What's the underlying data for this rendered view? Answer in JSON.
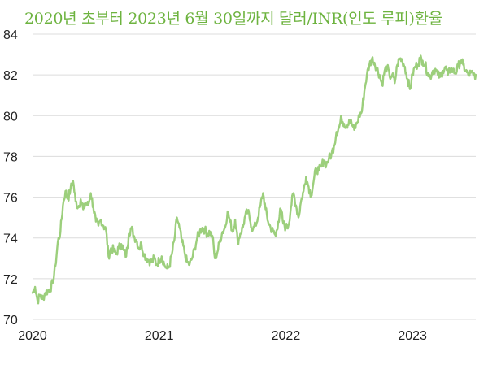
{
  "chart_data": {
    "type": "line",
    "title": "2020년 초부터 2023년 6월 30일까지 달러/INR(인도 루피)환율",
    "xlabel": "",
    "ylabel": "",
    "xlim": [
      2020.0,
      2023.5
    ],
    "ylim": [
      70,
      84
    ],
    "grid": "horizontal",
    "y_ticks": [
      "70",
      "72",
      "74",
      "76",
      "78",
      "80",
      "82",
      "84"
    ],
    "x_ticks": [
      "2020",
      "2021",
      "2022",
      "2023"
    ],
    "series_color": "#9ccf7c",
    "title_color": "#6db33f",
    "series": [
      {
        "x": [
          2020.0,
          2020.02,
          2020.04,
          2020.06,
          2020.08,
          2020.1,
          2020.12,
          2020.14,
          2020.16,
          2020.18,
          2020.2,
          2020.22,
          2020.24,
          2020.26,
          2020.28,
          2020.3,
          2020.32,
          2020.34,
          2020.36,
          2020.38,
          2020.4,
          2020.42,
          2020.44,
          2020.46,
          2020.48,
          2020.5,
          2020.52,
          2020.54,
          2020.56,
          2020.58,
          2020.6,
          2020.62,
          2020.64,
          2020.66,
          2020.68,
          2020.7,
          2020.72,
          2020.74,
          2020.76,
          2020.78,
          2020.8,
          2020.82,
          2020.84,
          2020.86,
          2020.88,
          2020.9,
          2020.92,
          2020.94,
          2020.96,
          2020.98,
          2021.0,
          2021.02,
          2021.04,
          2021.06,
          2021.08,
          2021.1,
          2021.12,
          2021.14,
          2021.16,
          2021.18,
          2021.2,
          2021.22,
          2021.24,
          2021.26,
          2021.28,
          2021.3,
          2021.32,
          2021.34,
          2021.36,
          2021.38,
          2021.4,
          2021.42,
          2021.44,
          2021.46,
          2021.48,
          2021.5,
          2021.52,
          2021.54,
          2021.56,
          2021.58,
          2021.6,
          2021.62,
          2021.64,
          2021.66,
          2021.68,
          2021.7,
          2021.72,
          2021.74,
          2021.76,
          2021.78,
          2021.8,
          2021.82,
          2021.84,
          2021.86,
          2021.88,
          2021.9,
          2021.92,
          2021.94,
          2021.96,
          2021.98,
          2022.0,
          2022.02,
          2022.04,
          2022.06,
          2022.08,
          2022.1,
          2022.12,
          2022.14,
          2022.16,
          2022.18,
          2022.2,
          2022.22,
          2022.24,
          2022.26,
          2022.28,
          2022.3,
          2022.32,
          2022.34,
          2022.36,
          2022.38,
          2022.4,
          2022.42,
          2022.44,
          2022.46,
          2022.48,
          2022.5,
          2022.52,
          2022.54,
          2022.56,
          2022.58,
          2022.6,
          2022.62,
          2022.64,
          2022.66,
          2022.68,
          2022.7,
          2022.72,
          2022.74,
          2022.76,
          2022.78,
          2022.8,
          2022.82,
          2022.84,
          2022.86,
          2022.88,
          2022.9,
          2022.92,
          2022.94,
          2022.96,
          2022.98,
          2023.0,
          2023.02,
          2023.04,
          2023.06,
          2023.08,
          2023.1,
          2023.12,
          2023.14,
          2023.16,
          2023.18,
          2023.2,
          2023.22,
          2023.24,
          2023.26,
          2023.28,
          2023.3,
          2023.32,
          2023.34,
          2023.36,
          2023.38,
          2023.4,
          2023.42,
          2023.44,
          2023.46,
          2023.48,
          2023.5
        ],
        "values": [
          71.3,
          71.6,
          70.9,
          71.2,
          71.0,
          71.3,
          71.4,
          71.5,
          71.8,
          72.6,
          73.8,
          74.3,
          75.6,
          76.3,
          75.9,
          76.4,
          76.8,
          75.8,
          75.5,
          75.9,
          75.4,
          75.7,
          75.6,
          76.2,
          75.5,
          74.8,
          74.6,
          74.9,
          74.6,
          74.4,
          73.1,
          73.5,
          73.4,
          73.2,
          73.5,
          73.7,
          73.4,
          73.1,
          74.2,
          74.5,
          74.1,
          73.9,
          73.5,
          73.7,
          73.2,
          73.0,
          72.9,
          72.8,
          73.0,
          72.7,
          72.9,
          73.1,
          72.7,
          72.5,
          72.6,
          73.2,
          73.9,
          75.0,
          74.5,
          73.8,
          73.3,
          72.8,
          72.7,
          73.0,
          73.5,
          74.0,
          74.3,
          74.5,
          74.4,
          74.2,
          74.3,
          74.1,
          73.0,
          73.3,
          73.9,
          74.3,
          74.5,
          75.3,
          74.8,
          74.3,
          74.9,
          73.8,
          74.2,
          74.5,
          75.1,
          75.3,
          74.8,
          74.4,
          74.6,
          75.0,
          75.6,
          76.2,
          75.4,
          74.8,
          74.5,
          74.3,
          74.1,
          74.8,
          75.4,
          74.7,
          74.5,
          74.6,
          75.5,
          76.2,
          75.6,
          75.0,
          75.8,
          76.3,
          77.0,
          76.5,
          76.1,
          76.8,
          77.4,
          77.3,
          77.5,
          77.8,
          77.6,
          77.9,
          78.1,
          78.5,
          79.2,
          79.4,
          79.9,
          79.6,
          79.5,
          79.8,
          79.6,
          79.3,
          79.6,
          80.0,
          80.2,
          81.2,
          82.0,
          82.5,
          82.8,
          82.6,
          82.3,
          82.0,
          81.5,
          82.2,
          82.4,
          81.9,
          82.0,
          81.6,
          82.5,
          82.8,
          82.7,
          82.4,
          81.8,
          81.3,
          82.0,
          82.4,
          82.5,
          82.8,
          82.7,
          82.5,
          82.1,
          81.9,
          82.2,
          82.3,
          82.0,
          81.9,
          82.2,
          82.4,
          82.0,
          82.3,
          82.2,
          82.1,
          82.4,
          82.7,
          82.5,
          82.2,
          82.0,
          82.1,
          82.0,
          82.0
        ]
      }
    ]
  }
}
